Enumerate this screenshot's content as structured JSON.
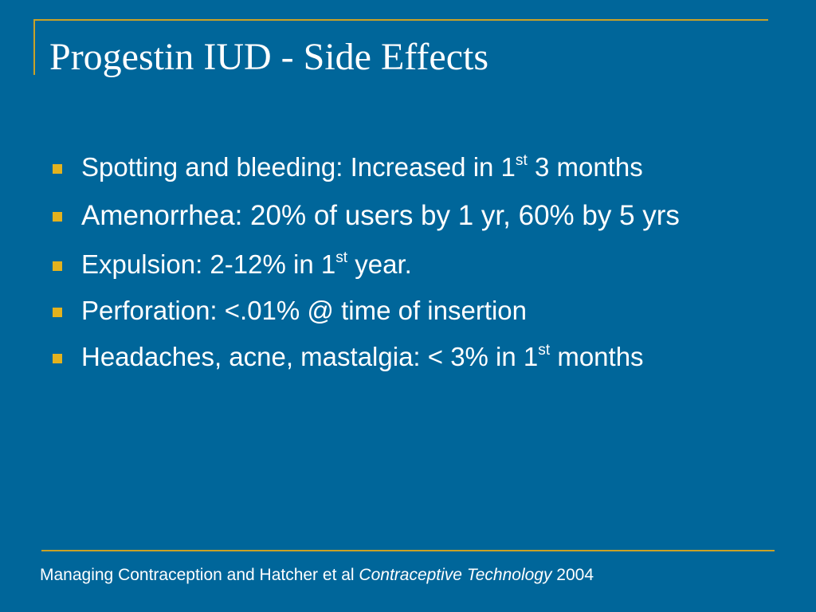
{
  "slide": {
    "title": "Progestin IUD - Side Effects",
    "bullets": [
      {
        "pre": "Spotting and bleeding: Increased in 1",
        "sup": "st",
        "post": " 3 months"
      },
      {
        "pre": "Amenorrhea: 20% of users by 1 yr, 60% by 5 yrs",
        "sup": "",
        "post": ""
      },
      {
        "pre": "Expulsion:  2-12% in 1",
        "sup": "st",
        "post": " year."
      },
      {
        "pre": "Perforation: <.01% @ time of insertion",
        "sup": "",
        "post": ""
      },
      {
        "pre": "Headaches, acne, mastalgia: < 3% in 1",
        "sup": "st",
        "post": " months"
      }
    ],
    "footer": {
      "text": "Managing Contraception and  Hatcher et al ",
      "italic": "Contraceptive Technology",
      "year": " 2004"
    }
  },
  "colors": {
    "background": "#00669a",
    "accent_line": "#c9a227",
    "bullet": "#e3b21e",
    "text": "#ffffff"
  }
}
